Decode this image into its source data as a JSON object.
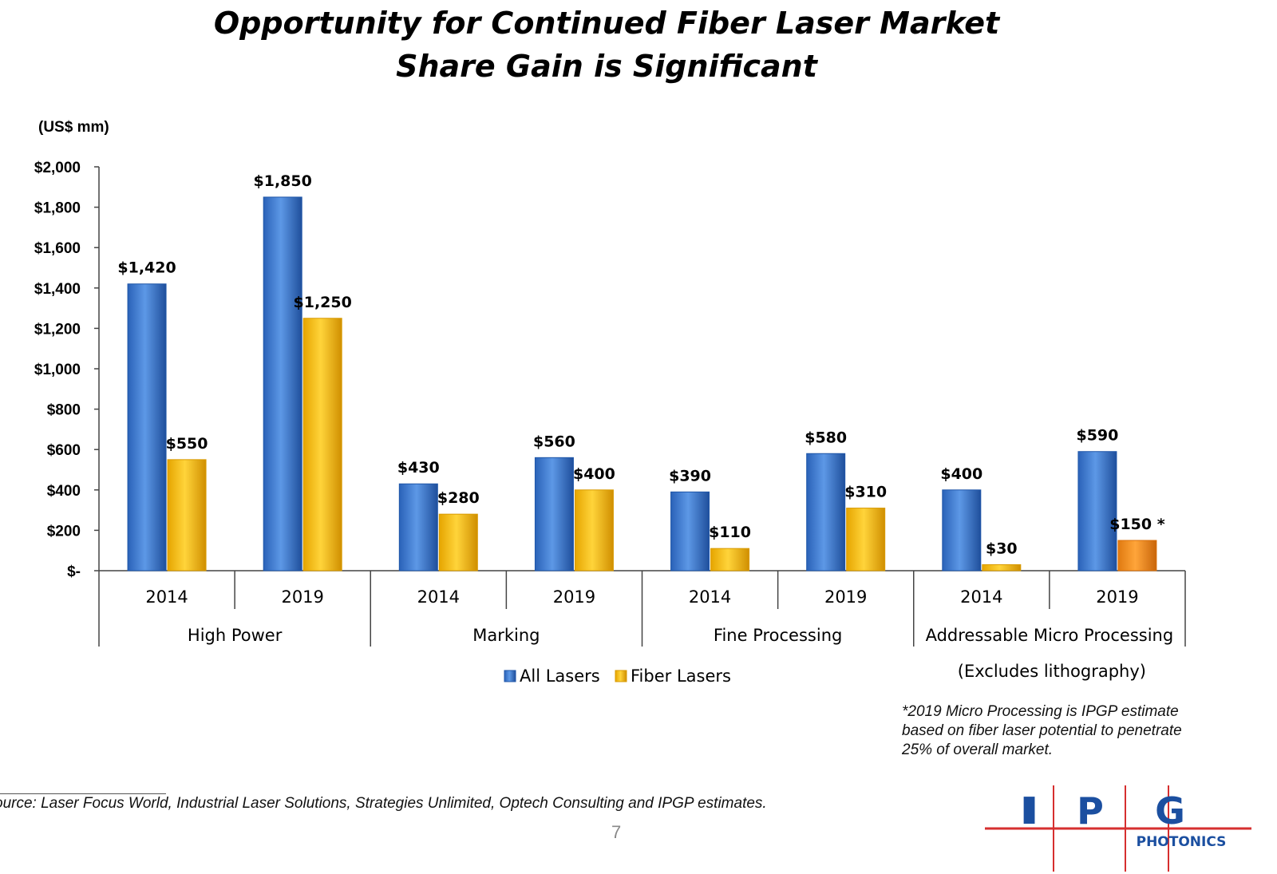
{
  "slide": {
    "title_line1": "Opportunity for Continued Fiber Laser Market",
    "title_line2": "Share Gain is Significant",
    "footnote_lines": [
      "*2019 Micro Processing is IPGP estimate",
      "based on fiber laser potential to penetrate",
      "25% of overall market."
    ],
    "source": "ource: Laser Focus World, Industrial Laser Solutions, Strategies Unlimited, Optech Consulting and IPGP estimates.",
    "page_number": "7",
    "logo_letters": [
      "I",
      "P",
      "G"
    ],
    "logo_text": "PHOTONICS"
  },
  "chart_data": {
    "type": "bar",
    "unit_label": "(US$ mm)",
    "ylim": [
      0,
      2000
    ],
    "y_ticks": [
      0,
      200,
      400,
      600,
      800,
      1000,
      1200,
      1400,
      1600,
      1800,
      2000
    ],
    "y_tick_labels": [
      "$-",
      "$200",
      "$400",
      "$600",
      "$800",
      "$1,000",
      "$1,200",
      "$1,400",
      "$1,600",
      "$1,800",
      "$2,000"
    ],
    "groups": [
      {
        "name": "High Power",
        "subtitle": ""
      },
      {
        "name": "Marking",
        "subtitle": ""
      },
      {
        "name": "Fine Processing",
        "subtitle": ""
      },
      {
        "name": "Addressable Micro Processing",
        "subtitle": "(Excludes lithography)"
      }
    ],
    "categories": [
      "2014",
      "2019",
      "2014",
      "2019",
      "2014",
      "2019",
      "2014",
      "2019"
    ],
    "series": [
      {
        "name": "All Lasers",
        "color": "#3a7bd5",
        "values": [
          1420,
          1850,
          430,
          560,
          390,
          580,
          400,
          590
        ],
        "labels": [
          "$1,420",
          "$1,850",
          "$430",
          "$560",
          "$390",
          "$580",
          "$400",
          "$590"
        ]
      },
      {
        "name": "Fiber Lasers",
        "color": "#ffc000",
        "values": [
          550,
          1250,
          280,
          400,
          110,
          310,
          30,
          150
        ],
        "labels": [
          "$550",
          "$1,250",
          "$280",
          "$400",
          "$110",
          "$310",
          "$30",
          "$150 *"
        ]
      }
    ],
    "highlight": {
      "series": 1,
      "index": 7,
      "color": "#f79a1e",
      "note": "estimate"
    },
    "legend_position": "bottom-center",
    "grid": false
  },
  "colors": {
    "blue_light": "#6fa6ec",
    "blue_dark": "#1f56a8",
    "gold_light": "#ffe066",
    "gold_dark": "#d89a00",
    "orange_light": "#ffb24d",
    "orange_dark": "#d9700a",
    "logo_blue": "#1b4fa0",
    "logo_red": "#d62f2f"
  }
}
